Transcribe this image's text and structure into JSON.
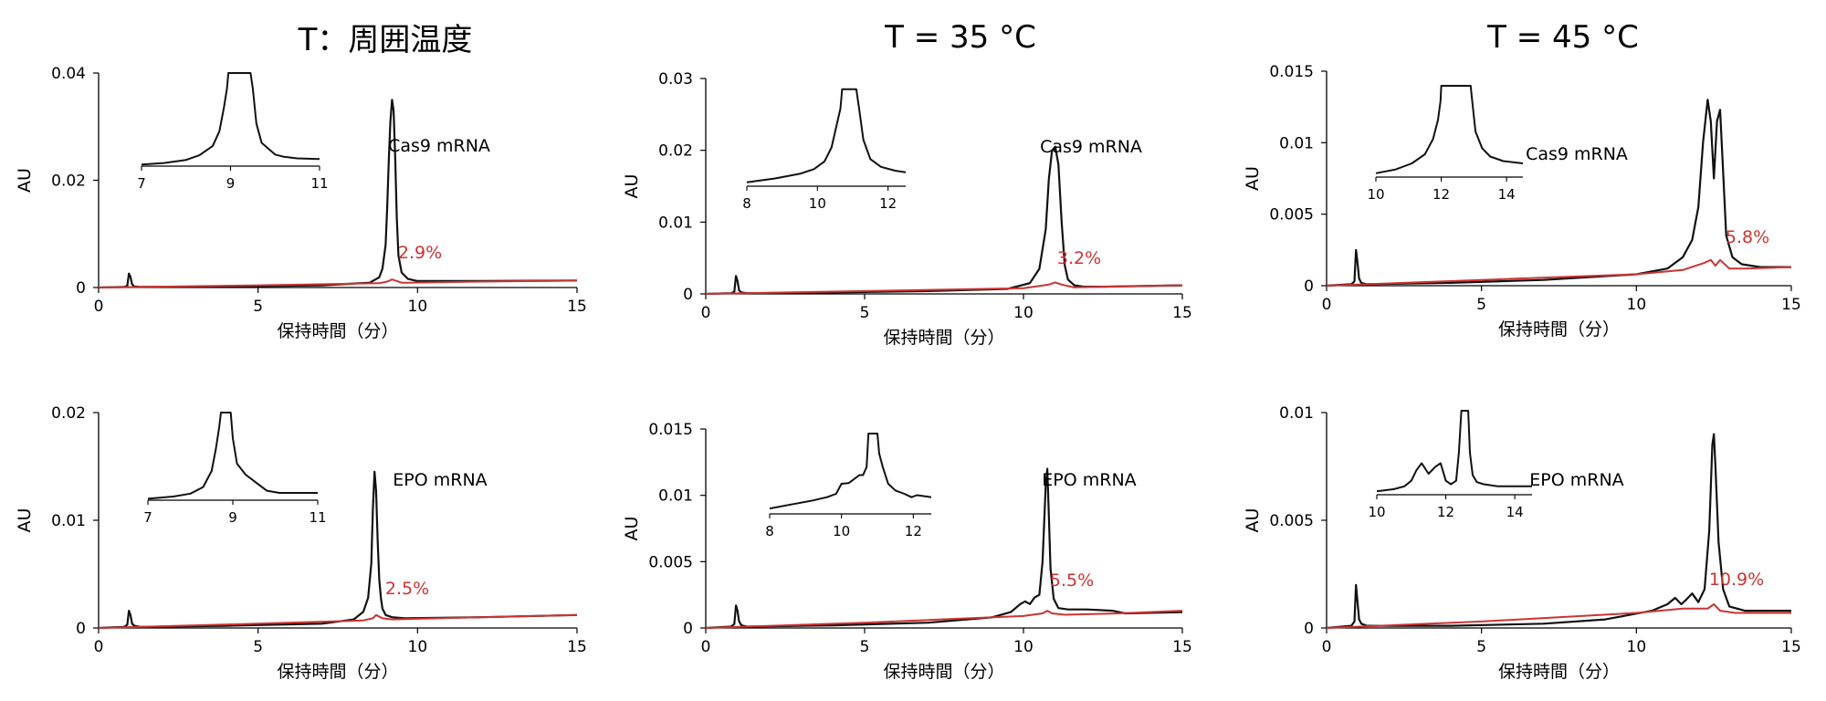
{
  "figure": {
    "column_titles": [
      "T：周囲温度",
      "T = 35 °C",
      "T = 45 °C"
    ],
    "colors": {
      "main_trace": "#111111",
      "red_trace": "#cc3333",
      "axis": "#000000"
    }
  },
  "chart_data": [
    {
      "type": "line",
      "column_title": "T：周囲温度",
      "sample_label": "Cas9 mRNA",
      "percent_label": "2.9%",
      "xlabel": "保持時間（分）",
      "ylabel": "AU",
      "xlim": [
        0,
        15
      ],
      "ylim": [
        0,
        0.04
      ],
      "xticks": [
        0,
        5,
        10,
        15
      ],
      "xtick_labels": [
        "0",
        "5",
        "10",
        "15"
      ],
      "yticks": [
        0,
        0.02,
        0.04
      ],
      "ytick_labels": [
        "0",
        "0.02",
        "0.04"
      ],
      "series": [
        {
          "x": [
            0,
            0.8,
            0.9,
            0.95,
            1.0,
            1.05,
            1.12,
            1.3,
            4,
            7,
            8.5,
            8.8,
            8.9,
            9.0,
            9.05,
            9.1,
            9.15,
            9.2,
            9.25,
            9.3,
            9.35,
            9.4,
            9.5,
            9.7,
            10,
            12,
            15
          ],
          "y": [
            0,
            0.0001,
            0.0003,
            0.0026,
            0.002,
            0.0006,
            0.0002,
            0.0001,
            0.0002,
            0.0004,
            0.0009,
            0.0019,
            0.0035,
            0.008,
            0.015,
            0.024,
            0.031,
            0.035,
            0.033,
            0.024,
            0.013,
            0.006,
            0.0028,
            0.0016,
            0.0012,
            0.0012,
            0.0013
          ]
        },
        {
          "x": [
            0,
            5,
            8.8,
            9.05,
            9.2,
            9.35,
            9.5,
            9.7,
            12,
            15
          ],
          "y": [
            0,
            0.0004,
            0.0008,
            0.0011,
            0.0015,
            0.0012,
            0.0009,
            0.0009,
            0.0011,
            0.0013
          ]
        }
      ],
      "inset": {
        "xlim": [
          7,
          11
        ],
        "xticks": [
          7,
          9,
          11
        ],
        "xtick_labels": [
          "7",
          "9",
          "11"
        ],
        "x": [
          7.0,
          7.5,
          8.0,
          8.3,
          8.6,
          8.75,
          8.85,
          8.92,
          8.95,
          9.45,
          9.5,
          9.58,
          9.7,
          9.9,
          10.0,
          10.2,
          10.5,
          11.0
        ],
        "y": [
          0.02,
          0.04,
          0.08,
          0.14,
          0.26,
          0.45,
          0.75,
          1.0,
          1.2,
          1.2,
          1.0,
          0.55,
          0.3,
          0.2,
          0.15,
          0.12,
          0.1,
          0.09
        ]
      }
    },
    {
      "type": "line",
      "column_title": "T = 35 °C",
      "sample_label": "Cas9 mRNA",
      "percent_label": "3.2%",
      "xlabel": "保持時間（分）",
      "ylabel": "AU",
      "xlim": [
        0,
        15
      ],
      "ylim": [
        0,
        0.03
      ],
      "xticks": [
        0,
        5,
        10,
        15
      ],
      "xtick_labels": [
        "0",
        "5",
        "10",
        "15"
      ],
      "yticks": [
        0,
        0.01,
        0.02,
        0.03
      ],
      "ytick_labels": [
        "0",
        "0.01",
        "0.02",
        "0.03"
      ],
      "series": [
        {
          "x": [
            0,
            0.8,
            0.9,
            0.95,
            1.0,
            1.05,
            1.12,
            1.3,
            4,
            7,
            9.5,
            10.2,
            10.5,
            10.7,
            10.8,
            10.9,
            11.0,
            11.1,
            11.2,
            11.3,
            11.4,
            11.6,
            11.9,
            12.5,
            15
          ],
          "y": [
            0,
            0.0001,
            0.0003,
            0.0025,
            0.0018,
            0.0005,
            0.0002,
            0.0001,
            0.0002,
            0.0004,
            0.0007,
            0.0015,
            0.0035,
            0.009,
            0.016,
            0.02,
            0.0205,
            0.018,
            0.01,
            0.004,
            0.002,
            0.0012,
            0.001,
            0.001,
            0.0012
          ]
        },
        {
          "x": [
            0,
            5,
            10,
            10.8,
            11.0,
            11.2,
            11.6,
            12.5,
            15
          ],
          "y": [
            0,
            0.0004,
            0.0008,
            0.0013,
            0.0016,
            0.0013,
            0.0009,
            0.001,
            0.0012
          ]
        }
      ],
      "inset": {
        "xlim": [
          8,
          12.5
        ],
        "xticks": [
          8,
          10,
          12
        ],
        "xtick_labels": [
          "8",
          "10",
          "12"
        ],
        "x": [
          8.0,
          8.8,
          9.5,
          9.9,
          10.2,
          10.4,
          10.55,
          10.65,
          10.7,
          11.1,
          11.18,
          11.3,
          11.5,
          11.8,
          12.2,
          12.5
        ],
        "y": [
          0.05,
          0.1,
          0.16,
          0.22,
          0.32,
          0.5,
          0.8,
          1.0,
          1.25,
          1.25,
          1.0,
          0.6,
          0.35,
          0.25,
          0.2,
          0.18
        ]
      }
    },
    {
      "type": "line",
      "column_title": "T = 45 °C",
      "sample_label": "Cas9 mRNA",
      "percent_label": "5.8%",
      "xlabel": "保持時間（分）",
      "ylabel": "AU",
      "xlim": [
        0,
        15
      ],
      "ylim": [
        0,
        0.015
      ],
      "xticks": [
        0,
        5,
        10,
        15
      ],
      "xtick_labels": [
        "0",
        "5",
        "10",
        "15"
      ],
      "yticks": [
        0,
        0.005,
        0.01,
        0.015
      ],
      "ytick_labels": [
        "0",
        "0.005",
        "0.01",
        "0.015"
      ],
      "series": [
        {
          "x": [
            0,
            0.8,
            0.9,
            0.95,
            1.0,
            1.05,
            1.12,
            1.3,
            4,
            7,
            10,
            11.0,
            11.5,
            11.8,
            12.0,
            12.15,
            12.3,
            12.4,
            12.5,
            12.6,
            12.7,
            12.8,
            12.9,
            13.1,
            13.4,
            14,
            15
          ],
          "y": [
            0,
            0.0001,
            0.0003,
            0.0025,
            0.0016,
            0.0005,
            0.0002,
            0.0001,
            0.0002,
            0.0004,
            0.0008,
            0.0012,
            0.002,
            0.0032,
            0.0055,
            0.01,
            0.013,
            0.0115,
            0.0075,
            0.0115,
            0.0123,
            0.008,
            0.0035,
            0.002,
            0.0015,
            0.0013,
            0.0013
          ]
        },
        {
          "x": [
            0,
            5,
            10,
            11.5,
            12.2,
            12.4,
            12.55,
            12.7,
            13.0,
            13.5,
            15
          ],
          "y": [
            0,
            0.0004,
            0.0008,
            0.0011,
            0.0016,
            0.0018,
            0.0014,
            0.0018,
            0.0012,
            0.0012,
            0.0013
          ]
        }
      ],
      "inset": {
        "xlim": [
          10,
          14.5
        ],
        "xticks": [
          10,
          12,
          14
        ],
        "xtick_labels": [
          "10",
          "12",
          "14"
        ],
        "x": [
          10.0,
          10.6,
          11.1,
          11.5,
          11.75,
          11.9,
          11.98,
          12.0,
          12.9,
          12.95,
          13.05,
          13.25,
          13.5,
          13.9,
          14.5
        ],
        "y": [
          0.05,
          0.1,
          0.18,
          0.3,
          0.5,
          0.75,
          1.0,
          1.2,
          1.2,
          1.0,
          0.6,
          0.38,
          0.27,
          0.21,
          0.18
        ]
      }
    },
    {
      "type": "line",
      "column_title": "T：周囲温度",
      "sample_label": "EPO mRNA",
      "percent_label": "2.5%",
      "xlabel": "保持時間（分）",
      "ylabel": "AU",
      "xlim": [
        0,
        15
      ],
      "ylim": [
        0,
        0.02
      ],
      "xticks": [
        0,
        5,
        10,
        15
      ],
      "xtick_labels": [
        "0",
        "5",
        "10",
        "15"
      ],
      "yticks": [
        0,
        0.01,
        0.02
      ],
      "ytick_labels": [
        "0",
        "0.01",
        "0.02"
      ],
      "series": [
        {
          "x": [
            0,
            0.8,
            0.9,
            0.95,
            1.0,
            1.05,
            1.12,
            1.3,
            4,
            7,
            8.0,
            8.3,
            8.45,
            8.55,
            8.6,
            8.65,
            8.7,
            8.75,
            8.8,
            8.85,
            8.9,
            9.0,
            9.2,
            9.6,
            12,
            15
          ],
          "y": [
            0,
            0.0001,
            0.0003,
            0.0016,
            0.0012,
            0.0004,
            0.0002,
            0.0001,
            0.0002,
            0.0004,
            0.0008,
            0.0015,
            0.0028,
            0.006,
            0.011,
            0.0145,
            0.0128,
            0.008,
            0.0045,
            0.0028,
            0.0018,
            0.0012,
            0.001,
            0.0009,
            0.001,
            0.0012
          ]
        },
        {
          "x": [
            0,
            5,
            8.3,
            8.6,
            8.7,
            8.9,
            9.2,
            12,
            15
          ],
          "y": [
            0,
            0.0004,
            0.0007,
            0.0009,
            0.0012,
            0.0009,
            0.0008,
            0.001,
            0.0012
          ]
        }
      ],
      "inset": {
        "xlim": [
          7,
          11
        ],
        "xticks": [
          7,
          9,
          11
        ],
        "xtick_labels": [
          "7",
          "9",
          "11"
        ],
        "x": [
          7.0,
          7.6,
          8.0,
          8.3,
          8.5,
          8.6,
          8.68,
          8.72,
          8.95,
          9.0,
          9.1,
          9.3,
          9.55,
          9.8,
          10.1,
          10.5,
          11.0
        ],
        "y": [
          0.02,
          0.05,
          0.09,
          0.18,
          0.4,
          0.7,
          1.0,
          1.2,
          1.2,
          0.85,
          0.5,
          0.35,
          0.24,
          0.13,
          0.1,
          0.1,
          0.1
        ]
      }
    },
    {
      "type": "line",
      "column_title": "T = 35 °C",
      "sample_label": "EPO mRNA",
      "percent_label": "5.5%",
      "xlabel": "保持時間（分）",
      "ylabel": "AU",
      "xlim": [
        0,
        15
      ],
      "ylim": [
        0,
        0.015
      ],
      "xticks": [
        0,
        5,
        10,
        15
      ],
      "xtick_labels": [
        "0",
        "5",
        "10",
        "15"
      ],
      "yticks": [
        0,
        0.005,
        0.01,
        0.015
      ],
      "ytick_labels": [
        "0",
        "0.005",
        "0.01",
        "0.015"
      ],
      "series": [
        {
          "x": [
            0,
            0.8,
            0.9,
            0.95,
            1.0,
            1.05,
            1.12,
            1.3,
            4,
            7,
            9.0,
            9.6,
            9.9,
            10.05,
            10.2,
            10.35,
            10.5,
            10.6,
            10.7,
            10.75,
            10.8,
            10.85,
            10.95,
            11.1,
            11.4,
            12.0,
            12.8,
            13.2,
            15
          ],
          "y": [
            0,
            0.0001,
            0.0003,
            0.0017,
            0.0013,
            0.0005,
            0.0002,
            0.0001,
            0.0002,
            0.0004,
            0.0008,
            0.0012,
            0.0018,
            0.002,
            0.0018,
            0.0023,
            0.0025,
            0.005,
            0.0108,
            0.012,
            0.0085,
            0.0045,
            0.0022,
            0.0015,
            0.0014,
            0.0014,
            0.0013,
            0.0011,
            0.0012
          ]
        },
        {
          "x": [
            0,
            5,
            10,
            10.6,
            10.75,
            10.9,
            11.3,
            13,
            15
          ],
          "y": [
            0,
            0.0004,
            0.0009,
            0.0011,
            0.0013,
            0.0011,
            0.001,
            0.0011,
            0.0013
          ]
        }
      ],
      "inset": {
        "xlim": [
          8,
          12.5
        ],
        "xticks": [
          8,
          10,
          12
        ],
        "xtick_labels": [
          "8",
          "10",
          "12"
        ],
        "x": [
          8.0,
          8.6,
          9.2,
          9.6,
          9.85,
          10.0,
          10.2,
          10.35,
          10.5,
          10.6,
          10.7,
          10.75,
          11.0,
          11.05,
          11.15,
          11.3,
          11.5,
          11.75,
          11.95,
          12.1,
          12.5
        ],
        "y": [
          0.08,
          0.14,
          0.2,
          0.25,
          0.3,
          0.45,
          0.46,
          0.52,
          0.58,
          0.58,
          0.7,
          1.2,
          1.2,
          0.9,
          0.7,
          0.45,
          0.35,
          0.3,
          0.25,
          0.28,
          0.25
        ]
      }
    },
    {
      "type": "line",
      "column_title": "T = 45 °C",
      "sample_label": "EPO mRNA",
      "percent_label": "10.9%",
      "xlabel": "保持時間（分）",
      "ylabel": "AU",
      "xlim": [
        0,
        15
      ],
      "ylim": [
        0,
        0.01
      ],
      "xticks": [
        0,
        5,
        10,
        15
      ],
      "xtick_labels": [
        "0",
        "5",
        "10",
        "15"
      ],
      "yticks": [
        0,
        0.005,
        0.01
      ],
      "ytick_labels": [
        "0",
        "0.005",
        "0.01"
      ],
      "series": [
        {
          "x": [
            0,
            0.8,
            0.9,
            0.95,
            1.0,
            1.05,
            1.12,
            1.3,
            4,
            7,
            9,
            10.5,
            11.0,
            11.25,
            11.45,
            11.6,
            11.8,
            12.0,
            12.2,
            12.35,
            12.45,
            12.5,
            12.55,
            12.65,
            12.8,
            13.0,
            13.5,
            15
          ],
          "y": [
            0,
            0.0001,
            0.0003,
            0.002,
            0.0012,
            0.0004,
            0.0002,
            0.0001,
            0.0001,
            0.0002,
            0.0004,
            0.0008,
            0.0011,
            0.0014,
            0.0011,
            0.0013,
            0.0016,
            0.0012,
            0.0018,
            0.0045,
            0.0085,
            0.009,
            0.0075,
            0.004,
            0.0018,
            0.001,
            0.0008,
            0.0008
          ]
        },
        {
          "x": [
            0,
            5,
            10,
            11.5,
            12.3,
            12.5,
            12.7,
            13.2,
            15
          ],
          "y": [
            0,
            0.0003,
            0.0007,
            0.0009,
            0.0009,
            0.0011,
            0.0008,
            0.0007,
            0.0007
          ]
        }
      ],
      "inset": {
        "xlim": [
          10,
          14.5
        ],
        "xticks": [
          10,
          12,
          14
        ],
        "xtick_labels": [
          "10",
          "12",
          "14"
        ],
        "x": [
          10.0,
          10.5,
          10.8,
          11.0,
          11.15,
          11.3,
          11.5,
          11.7,
          11.85,
          12.0,
          12.15,
          12.3,
          12.38,
          12.45,
          12.65,
          12.7,
          12.78,
          12.9,
          13.1,
          13.5,
          14.0,
          14.5
        ],
        "y": [
          0.05,
          0.08,
          0.12,
          0.2,
          0.35,
          0.45,
          0.3,
          0.4,
          0.45,
          0.2,
          0.15,
          0.2,
          0.6,
          1.2,
          1.2,
          0.6,
          0.28,
          0.18,
          0.15,
          0.12,
          0.12,
          0.12
        ]
      }
    }
  ]
}
